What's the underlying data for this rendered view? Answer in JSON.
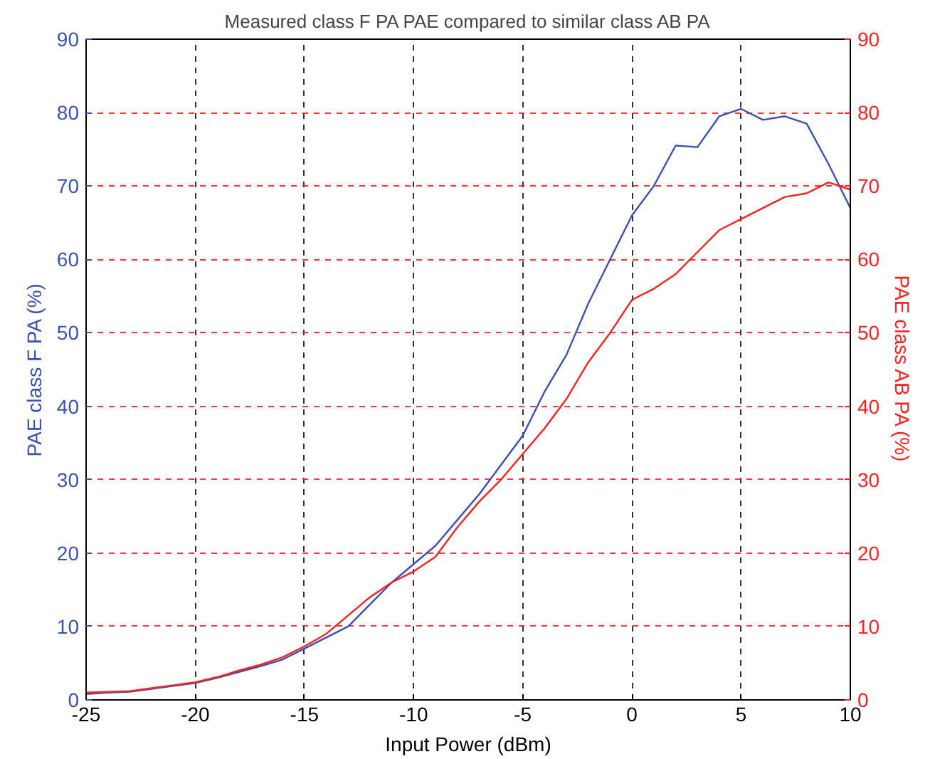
{
  "chart_data": {
    "type": "line",
    "title": "Measured class F PA PAE compared to similar class AB PA",
    "xlabel": "Input Power (dBm)",
    "ylabel": "PAE class F PA (%)",
    "y2label": "PAE class AB PA (%)",
    "x": [
      -25,
      -24,
      -23,
      -22,
      -21,
      -20,
      -19,
      -18,
      -17,
      -16,
      -15,
      -14,
      -13,
      -12,
      -11,
      -10,
      -9,
      -8,
      -7,
      -6,
      -5,
      -4,
      -3,
      -2,
      -1,
      0,
      1,
      2,
      3,
      4,
      5,
      6,
      7,
      8,
      9,
      10
    ],
    "series": [
      {
        "color": "#3a50b4",
        "values": [
          0.8,
          1,
          1.1,
          1.5,
          1.9,
          2.3,
          3,
          3.8,
          4.6,
          5.5,
          7,
          8.5,
          10,
          13,
          16,
          18.5,
          21,
          24.5,
          28,
          32,
          36,
          42,
          47,
          54,
          60,
          66,
          70,
          75.5,
          75.3,
          79.5,
          80.5,
          79,
          79.5,
          78.5,
          73,
          67
        ]
      },
      {
        "color": "#ff2020",
        "axis": "y2",
        "values": [
          1,
          1.1,
          1.2,
          1.6,
          2,
          2.4,
          3.1,
          4,
          4.8,
          5.8,
          7.3,
          9,
          11.5,
          14,
          16,
          17.5,
          19.5,
          23.5,
          27,
          30,
          33.5,
          37,
          41,
          46,
          50,
          54.5,
          56,
          58,
          61,
          64,
          65.5,
          67,
          68.5,
          69,
          70.5,
          69.5
        ]
      }
    ],
    "xlim": [
      -25,
      10
    ],
    "xticks": [
      -25,
      -20,
      -15,
      -10,
      -5,
      0,
      5,
      10
    ],
    "ylim": [
      0,
      90
    ],
    "yticks": [
      0,
      10,
      20,
      30,
      40,
      50,
      60,
      70,
      80,
      90
    ],
    "y2lim": [
      0,
      90
    ],
    "y2ticks": [
      0,
      10,
      20,
      30,
      40,
      50,
      60,
      70,
      80,
      90
    ],
    "grid": true,
    "line_style": "solid",
    "marker": "none"
  }
}
